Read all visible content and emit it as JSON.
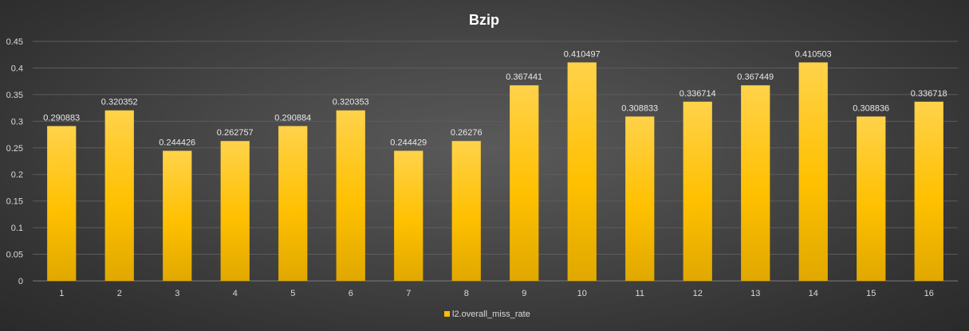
{
  "chart_data": {
    "type": "bar",
    "title": "Bzip",
    "xlabel": "",
    "ylabel": "",
    "categories": [
      "1",
      "2",
      "3",
      "4",
      "5",
      "6",
      "7",
      "8",
      "9",
      "10",
      "11",
      "12",
      "13",
      "14",
      "15",
      "16"
    ],
    "series": [
      {
        "name": "l2.overall_miss_rate",
        "values": [
          0.290883,
          0.320352,
          0.244426,
          0.262757,
          0.290884,
          0.320353,
          0.244429,
          0.26276,
          0.367441,
          0.410497,
          0.308833,
          0.336714,
          0.367449,
          0.410503,
          0.308836,
          0.336718
        ],
        "labels": [
          "0.290883",
          "0.320352",
          "0.244426",
          "0.262757",
          "0.290884",
          "0.320353",
          "0.244429",
          "0.26276",
          "0.367441",
          "0.410497",
          "0.308833",
          "0.336714",
          "0.367449",
          "0.410503",
          "0.308836",
          "0.336718"
        ]
      }
    ],
    "ylim": [
      0,
      0.45
    ],
    "yticks": [
      "0",
      "0.05",
      "0.1",
      "0.15",
      "0.2",
      "0.25",
      "0.3",
      "0.35",
      "0.4",
      "0.45"
    ],
    "grid": true,
    "legend_position": "bottom",
    "colors": {
      "bar_top": "#ffd24a",
      "bar_mid": "#ffc000",
      "bar_bottom": "#e0a800",
      "grid": "#5c5c5c",
      "axis": "#7a7a7a",
      "legend_marker": "#ffc000"
    }
  }
}
